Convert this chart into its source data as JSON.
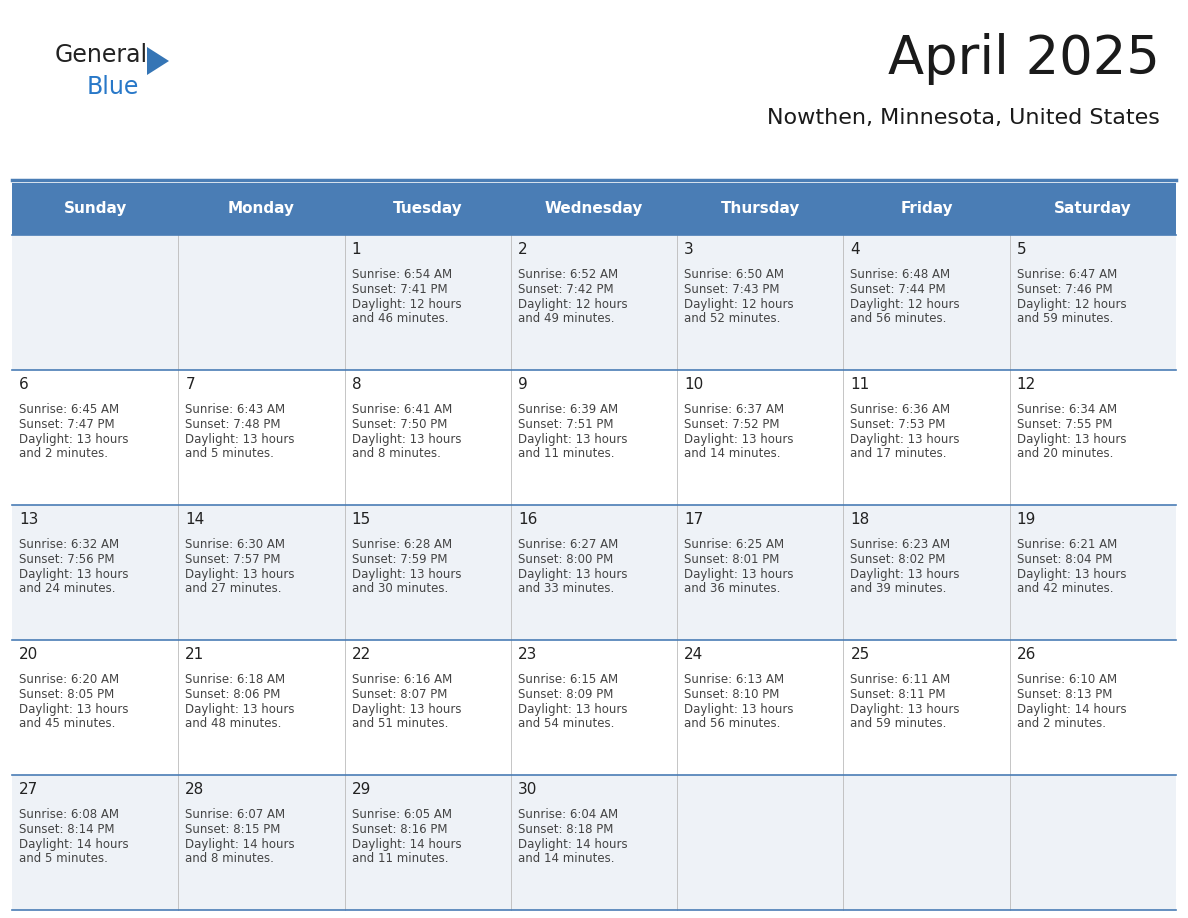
{
  "title": "April 2025",
  "subtitle": "Nowthen, Minnesota, United States",
  "header_bg": "#4a7db5",
  "header_text_color": "#ffffff",
  "row_line_color": "#4a7db5",
  "cell_bg_odd": "#eef2f7",
  "cell_bg_even": "#ffffff",
  "day_headers": [
    "Sunday",
    "Monday",
    "Tuesday",
    "Wednesday",
    "Thursday",
    "Friday",
    "Saturday"
  ],
  "calendar_data": [
    [
      {
        "day": "",
        "lines": []
      },
      {
        "day": "",
        "lines": []
      },
      {
        "day": "1",
        "lines": [
          "Sunrise: 6:54 AM",
          "Sunset: 7:41 PM",
          "Daylight: 12 hours",
          "and 46 minutes."
        ]
      },
      {
        "day": "2",
        "lines": [
          "Sunrise: 6:52 AM",
          "Sunset: 7:42 PM",
          "Daylight: 12 hours",
          "and 49 minutes."
        ]
      },
      {
        "day": "3",
        "lines": [
          "Sunrise: 6:50 AM",
          "Sunset: 7:43 PM",
          "Daylight: 12 hours",
          "and 52 minutes."
        ]
      },
      {
        "day": "4",
        "lines": [
          "Sunrise: 6:48 AM",
          "Sunset: 7:44 PM",
          "Daylight: 12 hours",
          "and 56 minutes."
        ]
      },
      {
        "day": "5",
        "lines": [
          "Sunrise: 6:47 AM",
          "Sunset: 7:46 PM",
          "Daylight: 12 hours",
          "and 59 minutes."
        ]
      }
    ],
    [
      {
        "day": "6",
        "lines": [
          "Sunrise: 6:45 AM",
          "Sunset: 7:47 PM",
          "Daylight: 13 hours",
          "and 2 minutes."
        ]
      },
      {
        "day": "7",
        "lines": [
          "Sunrise: 6:43 AM",
          "Sunset: 7:48 PM",
          "Daylight: 13 hours",
          "and 5 minutes."
        ]
      },
      {
        "day": "8",
        "lines": [
          "Sunrise: 6:41 AM",
          "Sunset: 7:50 PM",
          "Daylight: 13 hours",
          "and 8 minutes."
        ]
      },
      {
        "day": "9",
        "lines": [
          "Sunrise: 6:39 AM",
          "Sunset: 7:51 PM",
          "Daylight: 13 hours",
          "and 11 minutes."
        ]
      },
      {
        "day": "10",
        "lines": [
          "Sunrise: 6:37 AM",
          "Sunset: 7:52 PM",
          "Daylight: 13 hours",
          "and 14 minutes."
        ]
      },
      {
        "day": "11",
        "lines": [
          "Sunrise: 6:36 AM",
          "Sunset: 7:53 PM",
          "Daylight: 13 hours",
          "and 17 minutes."
        ]
      },
      {
        "day": "12",
        "lines": [
          "Sunrise: 6:34 AM",
          "Sunset: 7:55 PM",
          "Daylight: 13 hours",
          "and 20 minutes."
        ]
      }
    ],
    [
      {
        "day": "13",
        "lines": [
          "Sunrise: 6:32 AM",
          "Sunset: 7:56 PM",
          "Daylight: 13 hours",
          "and 24 minutes."
        ]
      },
      {
        "day": "14",
        "lines": [
          "Sunrise: 6:30 AM",
          "Sunset: 7:57 PM",
          "Daylight: 13 hours",
          "and 27 minutes."
        ]
      },
      {
        "day": "15",
        "lines": [
          "Sunrise: 6:28 AM",
          "Sunset: 7:59 PM",
          "Daylight: 13 hours",
          "and 30 minutes."
        ]
      },
      {
        "day": "16",
        "lines": [
          "Sunrise: 6:27 AM",
          "Sunset: 8:00 PM",
          "Daylight: 13 hours",
          "and 33 minutes."
        ]
      },
      {
        "day": "17",
        "lines": [
          "Sunrise: 6:25 AM",
          "Sunset: 8:01 PM",
          "Daylight: 13 hours",
          "and 36 minutes."
        ]
      },
      {
        "day": "18",
        "lines": [
          "Sunrise: 6:23 AM",
          "Sunset: 8:02 PM",
          "Daylight: 13 hours",
          "and 39 minutes."
        ]
      },
      {
        "day": "19",
        "lines": [
          "Sunrise: 6:21 AM",
          "Sunset: 8:04 PM",
          "Daylight: 13 hours",
          "and 42 minutes."
        ]
      }
    ],
    [
      {
        "day": "20",
        "lines": [
          "Sunrise: 6:20 AM",
          "Sunset: 8:05 PM",
          "Daylight: 13 hours",
          "and 45 minutes."
        ]
      },
      {
        "day": "21",
        "lines": [
          "Sunrise: 6:18 AM",
          "Sunset: 8:06 PM",
          "Daylight: 13 hours",
          "and 48 minutes."
        ]
      },
      {
        "day": "22",
        "lines": [
          "Sunrise: 6:16 AM",
          "Sunset: 8:07 PM",
          "Daylight: 13 hours",
          "and 51 minutes."
        ]
      },
      {
        "day": "23",
        "lines": [
          "Sunrise: 6:15 AM",
          "Sunset: 8:09 PM",
          "Daylight: 13 hours",
          "and 54 minutes."
        ]
      },
      {
        "day": "24",
        "lines": [
          "Sunrise: 6:13 AM",
          "Sunset: 8:10 PM",
          "Daylight: 13 hours",
          "and 56 minutes."
        ]
      },
      {
        "day": "25",
        "lines": [
          "Sunrise: 6:11 AM",
          "Sunset: 8:11 PM",
          "Daylight: 13 hours",
          "and 59 minutes."
        ]
      },
      {
        "day": "26",
        "lines": [
          "Sunrise: 6:10 AM",
          "Sunset: 8:13 PM",
          "Daylight: 14 hours",
          "and 2 minutes."
        ]
      }
    ],
    [
      {
        "day": "27",
        "lines": [
          "Sunrise: 6:08 AM",
          "Sunset: 8:14 PM",
          "Daylight: 14 hours",
          "and 5 minutes."
        ]
      },
      {
        "day": "28",
        "lines": [
          "Sunrise: 6:07 AM",
          "Sunset: 8:15 PM",
          "Daylight: 14 hours",
          "and 8 minutes."
        ]
      },
      {
        "day": "29",
        "lines": [
          "Sunrise: 6:05 AM",
          "Sunset: 8:16 PM",
          "Daylight: 14 hours",
          "and 11 minutes."
        ]
      },
      {
        "day": "30",
        "lines": [
          "Sunrise: 6:04 AM",
          "Sunset: 8:18 PM",
          "Daylight: 14 hours",
          "and 14 minutes."
        ]
      },
      {
        "day": "",
        "lines": []
      },
      {
        "day": "",
        "lines": []
      },
      {
        "day": "",
        "lines": []
      }
    ]
  ]
}
